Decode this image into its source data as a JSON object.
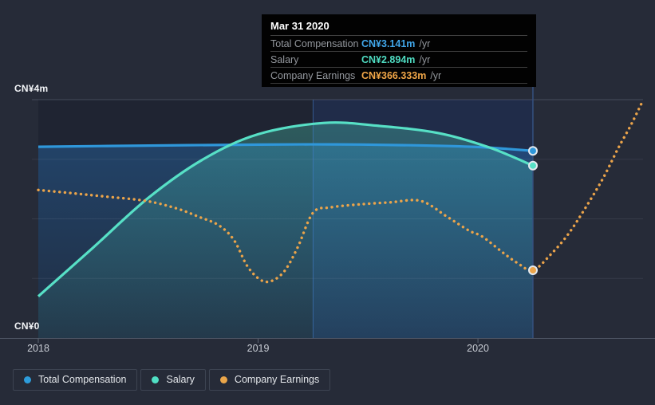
{
  "app": {
    "background": "#262b38"
  },
  "tooltip": {
    "title": "Mar 31 2020",
    "rows": [
      {
        "label": "Total Compensation",
        "value": "CN¥3.141m",
        "suffix": "/yr",
        "color": "#41a7ea"
      },
      {
        "label": "Salary",
        "value": "CN¥2.894m",
        "suffix": "/yr",
        "color": "#4fdcc2"
      },
      {
        "label": "Company Earnings",
        "value": "CN¥366.333m",
        "suffix": "/yr",
        "color": "#f0a648"
      }
    ]
  },
  "legend": {
    "items": [
      {
        "label": "Total Compensation",
        "color": "#2d9cdb"
      },
      {
        "label": "Salary",
        "color": "#50dfc4"
      },
      {
        "label": "Company Earnings",
        "color": "#eba64a"
      }
    ]
  },
  "chart_data": {
    "type": "line",
    "title": "",
    "x_domain": [
      2018,
      2020.751
    ],
    "x_ticks": [
      {
        "label": "2018",
        "year": 2018
      },
      {
        "label": "2019",
        "year": 2019
      },
      {
        "label": "2020",
        "year": 2020
      }
    ],
    "y_axis": {
      "unit": "CN¥m",
      "ylim": [
        0,
        4
      ],
      "grid_values": [
        1,
        2,
        3,
        4
      ],
      "ticks": [
        {
          "label": "CN¥0",
          "value": 0
        },
        {
          "label": "CN¥4m",
          "value": 4
        }
      ]
    },
    "y2_axis": {
      "ylim": [
        0,
        1288
      ],
      "unit": "CN¥m",
      "series": "Company Earnings",
      "visible": false
    },
    "highlight_band": {
      "from_year": 2019.25,
      "to_year": 2020.25
    },
    "hover_year": 2020.25,
    "series": [
      {
        "name": "Total Compensation",
        "color": "#2f97da",
        "line": "solid",
        "axis": "y1",
        "fill": true,
        "fill_from": "rgba(40,125,205,0.35)",
        "fill_to": "rgba(40,125,205,0.10)",
        "points": [
          [
            2018.0,
            3.21
          ],
          [
            2018.5,
            3.23
          ],
          [
            2019.0,
            3.245
          ],
          [
            2019.35,
            3.25
          ],
          [
            2019.7,
            3.235
          ],
          [
            2020.0,
            3.205
          ],
          [
            2020.25,
            3.141
          ]
        ]
      },
      {
        "name": "Salary",
        "color": "#57e0c6",
        "line": "solid",
        "axis": "y1",
        "fill": true,
        "fill_from": "rgba(80,220,195,0.30)",
        "fill_to": "rgba(80,220,195,0.07)",
        "points": [
          [
            2018.0,
            0.7
          ],
          [
            2018.25,
            1.52
          ],
          [
            2018.5,
            2.35
          ],
          [
            2018.75,
            3.0
          ],
          [
            2019.0,
            3.42
          ],
          [
            2019.3,
            3.61
          ],
          [
            2019.55,
            3.56
          ],
          [
            2019.82,
            3.44
          ],
          [
            2020.05,
            3.2
          ],
          [
            2020.25,
            2.894
          ]
        ]
      },
      {
        "name": "Company Earnings",
        "color": "#eba44a",
        "line": "dotted",
        "axis": "y2",
        "fill": false,
        "points": [
          [
            2018.0,
            800
          ],
          [
            2018.15,
            783
          ],
          [
            2018.3,
            765
          ],
          [
            2018.49,
            741
          ],
          [
            2018.63,
            700
          ],
          [
            2018.73,
            655
          ],
          [
            2018.82,
            610
          ],
          [
            2018.89,
            530
          ],
          [
            2018.95,
            390
          ],
          [
            2019.01,
            315
          ],
          [
            2019.06,
            308
          ],
          [
            2019.12,
            362
          ],
          [
            2019.18,
            490
          ],
          [
            2019.25,
            677
          ],
          [
            2019.33,
            706
          ],
          [
            2019.46,
            722
          ],
          [
            2019.6,
            733
          ],
          [
            2019.74,
            741
          ],
          [
            2019.86,
            655
          ],
          [
            2019.96,
            580
          ],
          [
            2020.02,
            548
          ],
          [
            2020.11,
            465
          ],
          [
            2020.18,
            405
          ],
          [
            2020.25,
            366.333
          ],
          [
            2020.33,
            450
          ],
          [
            2020.41,
            560
          ],
          [
            2020.49,
            705
          ],
          [
            2020.57,
            865
          ],
          [
            2020.64,
            1030
          ],
          [
            2020.7,
            1160
          ],
          [
            2020.751,
            1285
          ]
        ]
      }
    ]
  }
}
